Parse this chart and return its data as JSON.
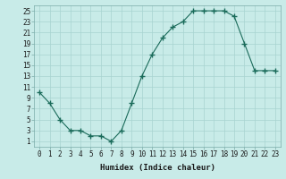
{
  "xlabel": "Humidex (Indice chaleur)",
  "ylabel": "",
  "x": [
    0,
    1,
    2,
    3,
    4,
    5,
    6,
    7,
    8,
    9,
    10,
    11,
    12,
    13,
    14,
    15,
    16,
    17,
    18,
    19,
    20,
    21,
    22,
    23
  ],
  "y": [
    10,
    8,
    5,
    3,
    3,
    2,
    2,
    1,
    3,
    8,
    13,
    17,
    20,
    22,
    23,
    25,
    25,
    25,
    25,
    24,
    19,
    14,
    14,
    14
  ],
  "line_color": "#1a6b5a",
  "marker": "+",
  "marker_size": 4,
  "bg_color": "#c8ebe8",
  "grid_color": "#a8d4d0",
  "xlim": [
    -0.5,
    23.5
  ],
  "ylim": [
    0,
    26
  ],
  "yticks": [
    1,
    3,
    5,
    7,
    9,
    11,
    13,
    15,
    17,
    19,
    21,
    23,
    25
  ],
  "xticks": [
    0,
    1,
    2,
    3,
    4,
    5,
    6,
    7,
    8,
    9,
    10,
    11,
    12,
    13,
    14,
    15,
    16,
    17,
    18,
    19,
    20,
    21,
    22,
    23
  ],
  "tick_fontsize": 5.5,
  "xlabel_fontsize": 6.5,
  "line_width": 0.8,
  "marker_color": "#1a6b5a"
}
